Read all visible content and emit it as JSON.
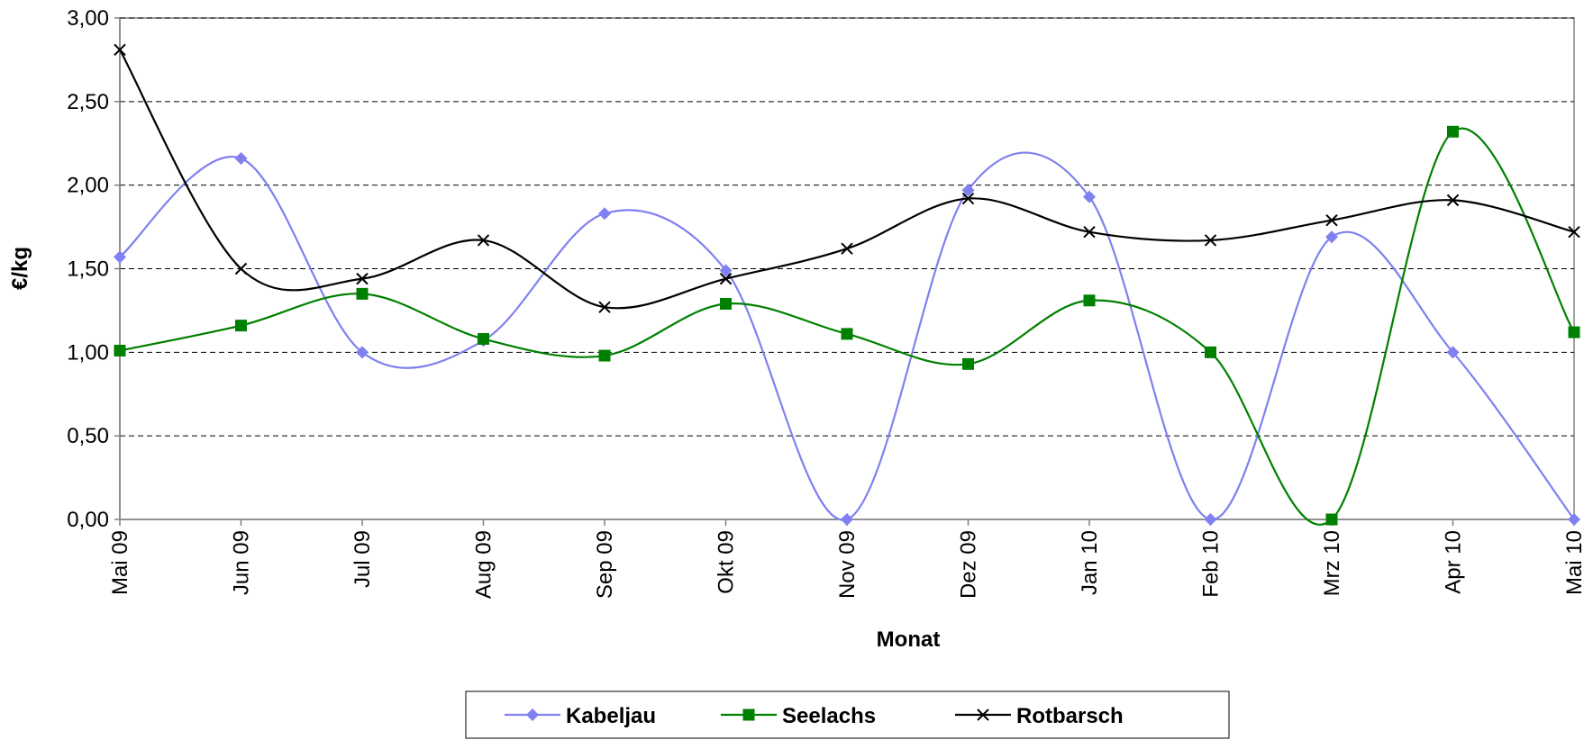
{
  "chart_data": {
    "type": "line",
    "categories": [
      "Mai 09",
      "Jun 09",
      "Jul 09",
      "Aug 09",
      "Sep 09",
      "Okt 09",
      "Nov 09",
      "Dez 09",
      "Jan 10",
      "Feb 10",
      "Mrz 10",
      "Apr 10",
      "Mai 10"
    ],
    "series": [
      {
        "name": "Kabeljau",
        "color": "#8080f0",
        "marker": "diamond",
        "values": [
          1.57,
          2.16,
          1.0,
          1.07,
          1.83,
          1.49,
          0.0,
          1.97,
          1.93,
          0.0,
          1.69,
          1.0,
          0.0
        ]
      },
      {
        "name": "Seelachs",
        "color": "#008000",
        "marker": "square",
        "values": [
          1.01,
          1.16,
          1.35,
          1.08,
          0.98,
          1.29,
          1.11,
          0.93,
          1.31,
          1.0,
          0.0,
          2.32,
          1.12
        ]
      },
      {
        "name": "Rotbarsch",
        "color": "#000000",
        "marker": "x",
        "values": [
          2.81,
          1.5,
          1.44,
          1.67,
          1.27,
          1.44,
          1.62,
          1.92,
          1.72,
          1.67,
          1.79,
          1.91,
          1.72
        ]
      }
    ],
    "xlabel": "Monat",
    "ylabel": "€/kg",
    "ylim": [
      0,
      3
    ],
    "yticks": [
      {
        "value": 0,
        "label": "0,00"
      },
      {
        "value": 0.5,
        "label": "0,50"
      },
      {
        "value": 1,
        "label": "1,00"
      },
      {
        "value": 1.5,
        "label": "1,50"
      },
      {
        "value": 2,
        "label": "2,00"
      },
      {
        "value": 2.5,
        "label": "2,50"
      },
      {
        "value": 3,
        "label": "3,00"
      }
    ],
    "grid": true,
    "smooth": true,
    "legend": "bottom"
  }
}
